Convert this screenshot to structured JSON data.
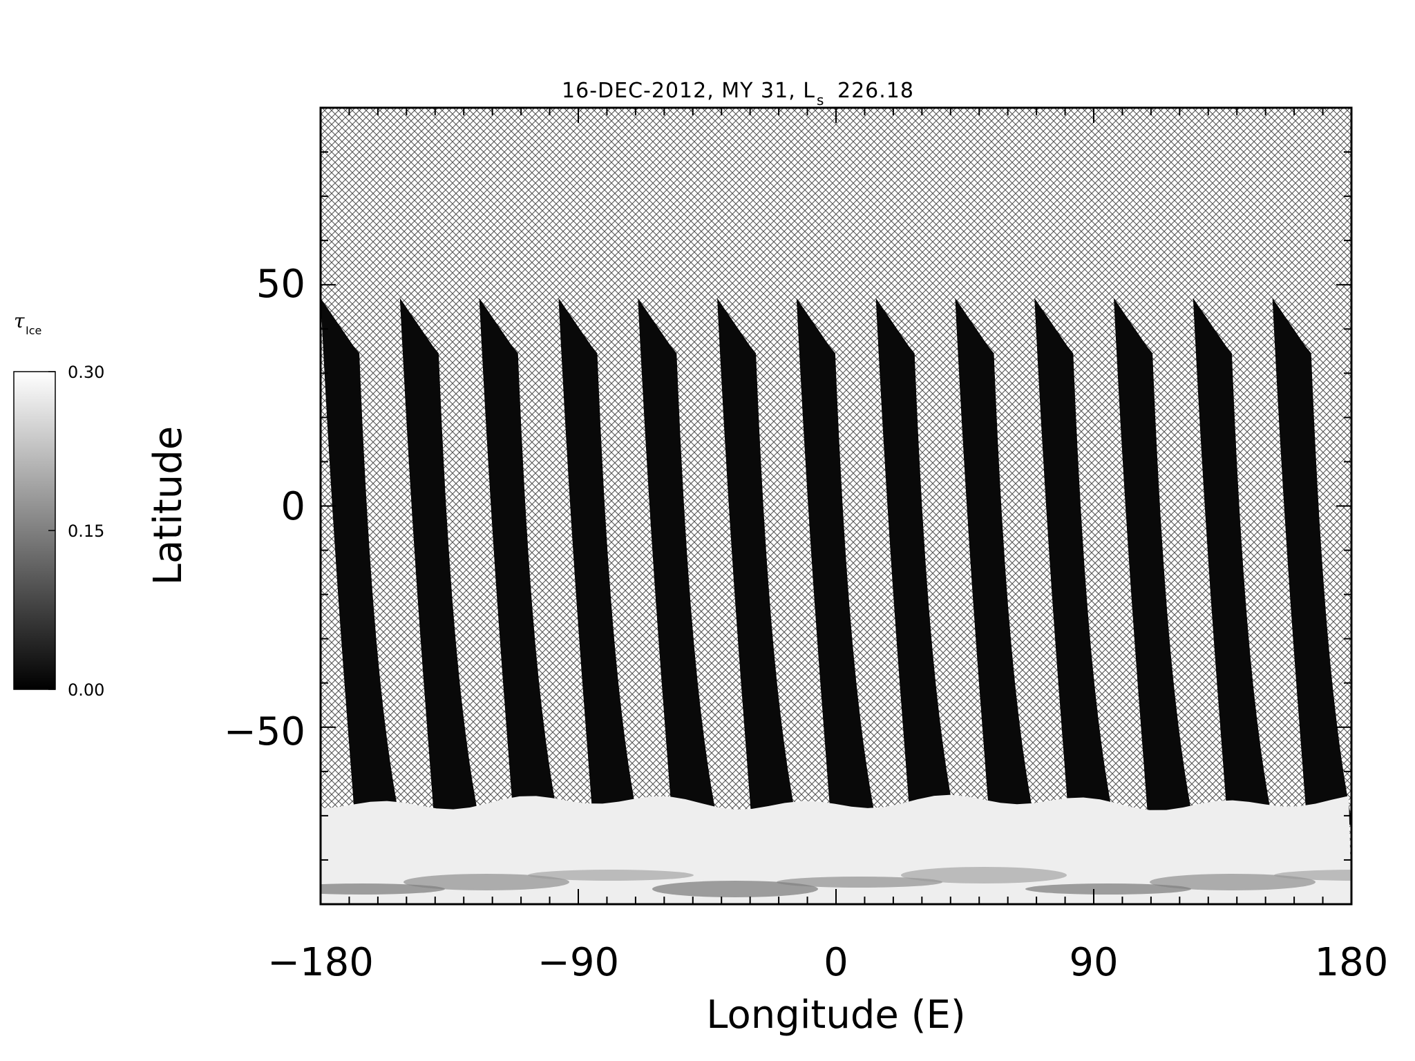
{
  "chart_data": {
    "type": "heatmap",
    "title_main": "16-DEC-2012, MY 31,  L",
    "title_sub": "s",
    "title_value": "226.18",
    "xlabel": "Longitude (E)",
    "ylabel": "Latitude",
    "xlim": [
      -180,
      180
    ],
    "ylim": [
      -90,
      90
    ],
    "x_ticks": [
      "−180",
      "−90",
      "0",
      "90",
      "180"
    ],
    "x_tick_values": [
      -180,
      -90,
      0,
      90,
      180
    ],
    "y_ticks": [
      "−50",
      "0",
      "50"
    ],
    "y_tick_values": [
      -50,
      0,
      50
    ],
    "colorbar": {
      "label_symbol": "τ",
      "label_sub": "Ice",
      "min": 0.0,
      "max": 0.3,
      "tick_labels": [
        "0.00",
        "0.15",
        "0.30"
      ],
      "tick_values": [
        0.0,
        0.15,
        0.3
      ],
      "colormap": [
        "#000000",
        "#ffffff"
      ]
    },
    "swaths": {
      "count": 14,
      "start_lon_at_north": -180,
      "spacing_deg": 27.7,
      "top_lat": 47,
      "swath_value": 0.01
    },
    "polar_cloud_lat_top": -67,
    "polar_cloud_value": 0.28,
    "no_data_pattern": "cross-hatch"
  }
}
